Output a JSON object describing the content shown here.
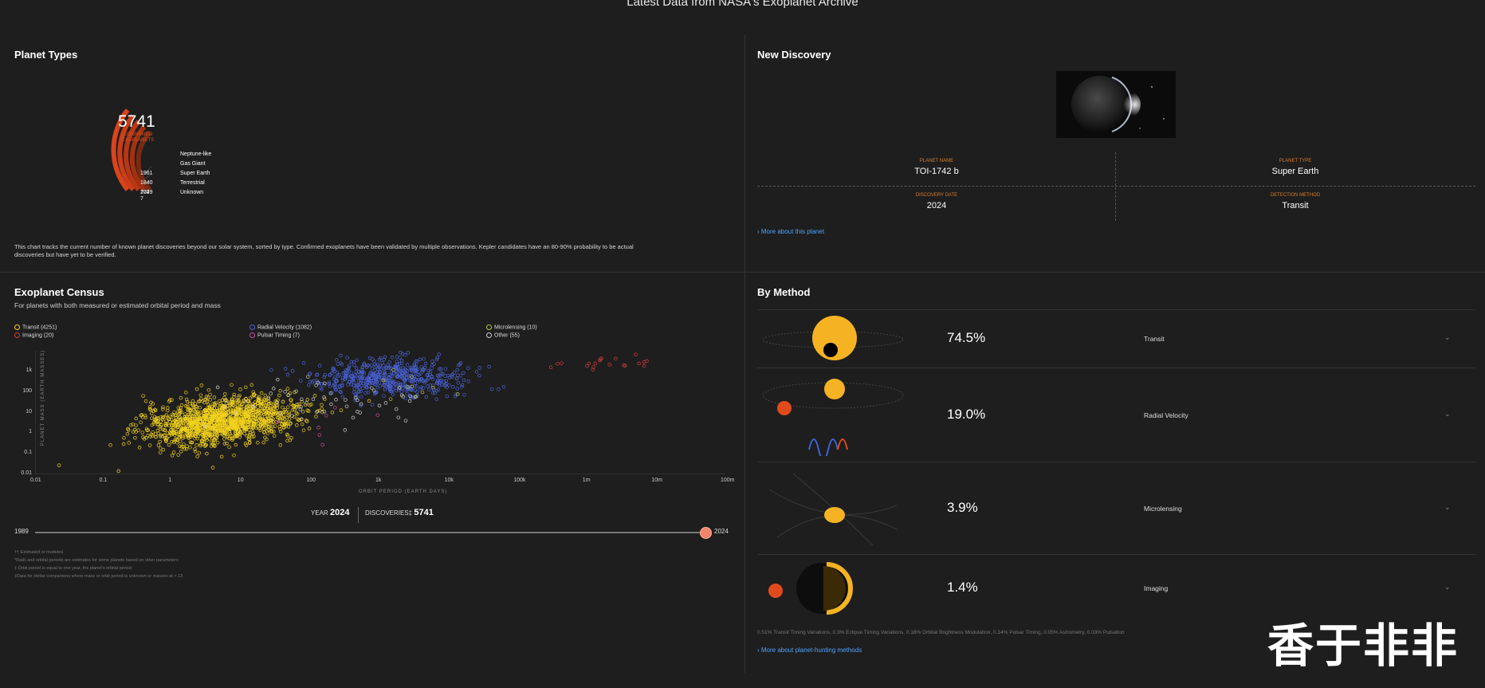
{
  "page_title": "Latest Data from NASA's Exoplanet Archive",
  "planet_types": {
    "title": "Planet Types",
    "total": "5741",
    "total_label": "CONFIRMED EXOPLANETS",
    "rows": [
      {
        "count": "",
        "label": "Neptune-like"
      },
      {
        "count": "",
        "label": "Gas Giant"
      },
      {
        "count": "1961",
        "label": "Super Earth"
      },
      {
        "count": "1840",
        "label": "Terrestrial"
      },
      {
        "count": "1729",
        "label": "Unknown"
      },
      {
        "count": "204",
        "label": ""
      },
      {
        "count": "7",
        "label": ""
      }
    ],
    "description": "This chart tracks the current number of known planet discoveries beyond our solar system, sorted by type. Confirmed exoplanets have been validated by multiple observations. Kepler candidates have an 80-90% probability to be actual discoveries but have yet to be verified."
  },
  "census": {
    "title": "Exoplanet Census",
    "subtitle": "For planets with both measured or estimated orbital period and mass",
    "legend": [
      {
        "label": "Transit (4251)",
        "color": "#f2d21b"
      },
      {
        "label": "Radial Velocity (1082)",
        "color": "#4a63d8"
      },
      {
        "label": "Microlensing (10)",
        "color": "#b9c43a"
      },
      {
        "label": "Imaging (20)",
        "color": "#d93a3a"
      },
      {
        "label": "Pulsar Timing (7)",
        "color": "#c94d9a"
      },
      {
        "label": "Other (55)",
        "color": "#cfcfcf"
      }
    ],
    "year_label": "YEAR",
    "year": "2024",
    "discoveries_label": "DISCOVERIES‡",
    "discoveries": "5741",
    "slider_start": "1989",
    "slider_end": "2024",
    "slider_progress": 1.0,
    "footnotes": [
      "†† Estimated or modeled",
      "*Radii and orbital periods are estimates for some planets based on other parameters",
      "‡ Orbit period is equal to one year, the planet's orbital period",
      "‡Data for stellar companions where mass or orbit period is unknown or masses at > 13"
    ]
  },
  "chart_data": {
    "type": "scatter",
    "title": "",
    "xlabel": "ORBIT PERIOD (EARTH DAYS)",
    "ylabel": "PLANET MASS (EARTH MASSES)",
    "x_scale": "log",
    "y_scale": "log",
    "xlim": [
      0.01,
      100000000
    ],
    "ylim": [
      0.01,
      10000
    ],
    "x_ticks": [
      "0.01",
      "0.1",
      "1",
      "10",
      "100",
      "1k",
      "10k",
      "100k",
      "1m",
      "10m",
      "100m"
    ],
    "y_ticks": [
      "1k",
      "100",
      "10",
      "1",
      "0.1",
      "0.01"
    ],
    "series": [
      {
        "name": "Transit (4251)",
        "x_center": 5,
        "y_center": 4,
        "count": 4251
      },
      {
        "name": "Radial Velocity (1082)",
        "x_center": 1500,
        "y_center": 500,
        "count": 1082
      },
      {
        "name": "Microlensing (10)",
        "x_center": 3000,
        "y_center": 150,
        "count": 10
      },
      {
        "name": "Imaging (20)",
        "x_center": 2000000,
        "y_center": 2500,
        "count": 20
      },
      {
        "name": "Pulsar Timing (7)",
        "x_center": 80,
        "y_center": 5,
        "count": 7
      },
      {
        "name": "Other (55)",
        "x_center": 200,
        "y_center": 30,
        "count": 55
      }
    ]
  },
  "discovery": {
    "title": "New Discovery",
    "planet_name_label": "PLANET NAME",
    "planet_name": "TOI-1742 b",
    "planet_type_label": "PLANET TYPE",
    "planet_type": "Super Earth",
    "date_label": "DISCOVERY DATE",
    "date": "2024",
    "method_label": "DETECTION METHOD",
    "method": "Transit",
    "link": "› More about this planet"
  },
  "by_method": {
    "title": "By Method",
    "methods": [
      {
        "pct": "74.5%",
        "name": "Transit"
      },
      {
        "pct": "19.0%",
        "name": "Radial Velocity"
      },
      {
        "pct": "3.9%",
        "name": "Microlensing"
      },
      {
        "pct": "1.4%",
        "name": "Imaging"
      }
    ],
    "footer": "0.51% Transit Timing Variations, 0.3% Eclipse Timing Variations, 0.18% Orbital Brightness Modulation, 0.14% Pulsar Timing, 0.05% Astrometry, 0.03% Pulsation",
    "link": "› More about planet-hunting methods"
  },
  "watermark": "香于非非"
}
